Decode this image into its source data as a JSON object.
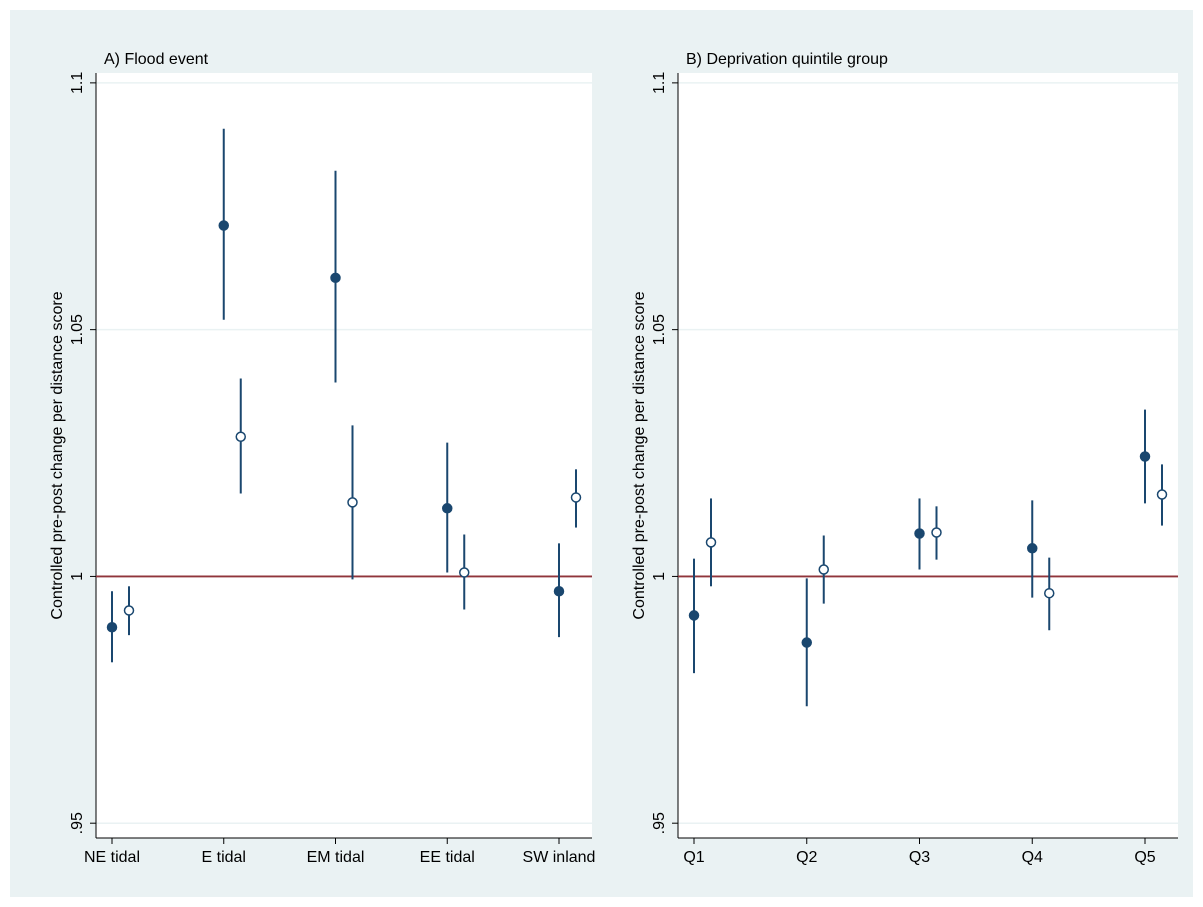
{
  "chart_data": [
    {
      "type": "errorbar",
      "title": "A) Flood event",
      "ylabel": "Controlled pre-post change per distance score",
      "categories": [
        "NE tidal",
        "E tidal",
        "EM tidal",
        "EE tidal",
        "SW inland"
      ],
      "series": [
        {
          "color": "#1a476f",
          "marker": "filled",
          "values": [
            0.9897,
            1.0711,
            1.0605,
            1.0138,
            0.997
          ],
          "lower": [
            0.9826,
            1.052,
            1.0393,
            1.0008,
            0.9877
          ],
          "upper": [
            0.997,
            1.0907,
            1.0822,
            1.0271,
            1.0067
          ]
        },
        {
          "color": "#1a476f",
          "marker": "hollow",
          "values": [
            0.9931,
            1.0283,
            1.015,
            1.0008,
            1.016
          ],
          "lower": [
            0.9881,
            1.0168,
            0.9994,
            0.9933,
            1.0099
          ],
          "upper": [
            0.998,
            1.0401,
            1.0306,
            1.0085,
            1.0217
          ]
        }
      ],
      "reference_line": 1,
      "reference_color": "#90353b",
      "ylim": [
        0.947,
        1.102
      ],
      "yticks": [
        {
          "value": 0.95,
          "label": ".95"
        },
        1,
        1.05,
        1.1
      ],
      "grid": true
    },
    {
      "type": "errorbar",
      "title": "B) Deprivation quintile group",
      "ylabel": "Controlled pre-post change per distance score",
      "categories": [
        "Q1",
        "Q2",
        "Q3",
        "Q4",
        "Q5"
      ],
      "series": [
        {
          "color": "#1a476f",
          "marker": "filled",
          "values": [
            0.9921,
            0.9866,
            1.0087,
            1.0057,
            1.0243
          ],
          "lower": [
            0.9804,
            0.9737,
            1.0014,
            0.9957,
            1.0148
          ],
          "upper": [
            1.0036,
            0.9996,
            1.0158,
            1.0154,
            1.0338
          ]
        },
        {
          "color": "#1a476f",
          "marker": "hollow",
          "values": [
            1.0069,
            1.0014,
            1.0089,
            0.9966,
            1.0166
          ],
          "lower": [
            0.998,
            0.9945,
            1.0034,
            0.9891,
            1.0103
          ],
          "upper": [
            1.0158,
            1.0083,
            1.0142,
            1.0038,
            1.0227
          ]
        }
      ],
      "reference_line": 1,
      "reference_color": "#90353b",
      "ylim": [
        0.947,
        1.102
      ],
      "yticks": [
        {
          "value": 0.95,
          "label": ".95"
        },
        1,
        1.05,
        1.1
      ],
      "grid": true
    }
  ]
}
